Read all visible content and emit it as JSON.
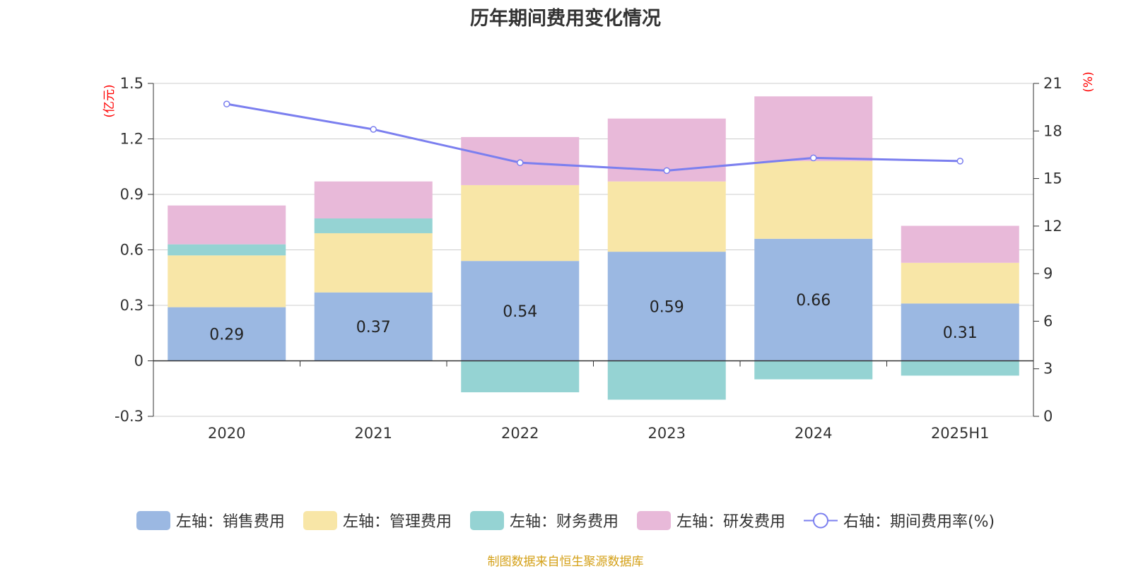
{
  "title": "历年期间费用变化情况",
  "source_note": "制图数据来自恒生聚源数据库",
  "left_axis_unit": "(亿元)",
  "right_axis_unit": "(%)",
  "colors": {
    "sales": "#9bb8e2",
    "admin": "#f8e6a7",
    "finance": "#95d3d3",
    "rd": "#e8b9d9",
    "rate_line": "#7b7fef",
    "unit_text": "#ff0000",
    "source_text": "#d4a017"
  },
  "legend": [
    {
      "label": "左轴：销售费用",
      "series": "sales"
    },
    {
      "label": "左轴：管理费用",
      "series": "admin"
    },
    {
      "label": "左轴：财务费用",
      "series": "finance"
    },
    {
      "label": "左轴：研发费用",
      "series": "rd"
    },
    {
      "label": "右轴：期间费用率(%)",
      "series": "rate"
    }
  ],
  "chart_data": {
    "type": "bar",
    "stacked": true,
    "categories": [
      "2020",
      "2021",
      "2022",
      "2023",
      "2024",
      "2025H1"
    ],
    "series": [
      {
        "key": "sales",
        "name": "左轴：销售费用",
        "axis": "left",
        "values": [
          0.29,
          0.37,
          0.54,
          0.59,
          0.66,
          0.31
        ],
        "labels": [
          "0.29",
          "0.37",
          "0.54",
          "0.59",
          "0.66",
          "0.31"
        ]
      },
      {
        "key": "admin",
        "name": "左轴：管理费用",
        "axis": "left",
        "values": [
          0.28,
          0.32,
          0.41,
          0.38,
          0.42,
          0.22
        ]
      },
      {
        "key": "finance",
        "name": "左轴：财务费用",
        "axis": "left",
        "values": [
          0.06,
          0.08,
          -0.17,
          -0.21,
          -0.1,
          -0.08
        ]
      },
      {
        "key": "rd",
        "name": "左轴：研发费用",
        "axis": "left",
        "values": [
          0.21,
          0.2,
          0.26,
          0.34,
          0.35,
          0.2
        ]
      },
      {
        "key": "rate",
        "name": "右轴：期间费用率(%)",
        "axis": "right",
        "type": "line",
        "values": [
          19.7,
          18.1,
          16.0,
          15.5,
          16.3,
          16.1
        ]
      }
    ],
    "left_axis": {
      "min": -0.3,
      "max": 1.5,
      "ticks": [
        "-0.3",
        "0",
        "0.3",
        "0.6",
        "0.9",
        "1.2",
        "1.5"
      ]
    },
    "right_axis": {
      "min": 0,
      "max": 21,
      "ticks": [
        "0",
        "3",
        "6",
        "9",
        "12",
        "15",
        "18",
        "21"
      ]
    },
    "grid": true,
    "legend_position": "bottom"
  }
}
